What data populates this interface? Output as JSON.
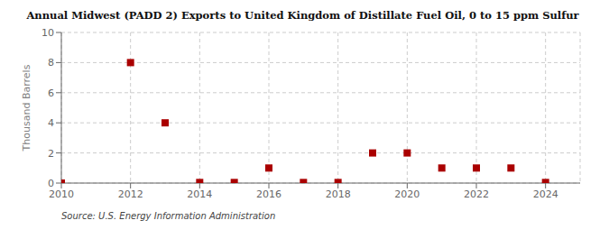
{
  "chart_data": {
    "type": "scatter",
    "title": "Annual Midwest (PADD 2) Exports to United Kingdom of Distillate Fuel Oil, 0 to 15 ppm Sulfur",
    "ylabel": "Thousand Barrels",
    "annotations": [
      "Source: U.S. Energy Information Administration"
    ],
    "x": [
      2010,
      2012,
      2013,
      2014,
      2015,
      2016,
      2017,
      2018,
      2019,
      2020,
      2021,
      2022,
      2023,
      2024
    ],
    "values": [
      0,
      8,
      4,
      0.04,
      0.04,
      1,
      0.04,
      0.04,
      2,
      2,
      1,
      1,
      1,
      0.04
    ],
    "color": "#aa0000",
    "marker": "square",
    "xlim": [
      2010,
      2025
    ],
    "ylim": [
      0,
      10
    ],
    "xticks": [
      2010,
      2012,
      2014,
      2016,
      2018,
      2020,
      2022,
      2024
    ],
    "yticks": [
      0,
      2,
      4,
      6,
      8,
      10
    ],
    "grid": true
  }
}
